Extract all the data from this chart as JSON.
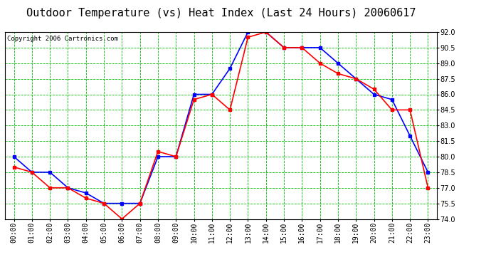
{
  "title": "Outdoor Temperature (vs) Heat Index (Last 24 Hours) 20060617",
  "copyright": "Copyright 2006 Cartronics.com",
  "hours": [
    "00:00",
    "01:00",
    "02:00",
    "03:00",
    "04:00",
    "05:00",
    "06:00",
    "07:00",
    "08:00",
    "09:00",
    "10:00",
    "11:00",
    "12:00",
    "13:00",
    "14:00",
    "15:00",
    "16:00",
    "17:00",
    "18:00",
    "19:00",
    "20:00",
    "21:00",
    "22:00",
    "23:00"
  ],
  "temp": [
    80.0,
    78.5,
    78.5,
    77.0,
    76.5,
    75.5,
    75.5,
    75.5,
    80.0,
    80.0,
    86.0,
    86.0,
    88.5,
    92.0,
    92.0,
    90.5,
    90.5,
    90.5,
    89.0,
    87.5,
    86.0,
    85.5,
    82.0,
    78.5
  ],
  "heat_index": [
    79.0,
    78.5,
    77.0,
    77.0,
    76.0,
    75.5,
    74.0,
    75.5,
    80.5,
    80.0,
    85.5,
    86.0,
    84.5,
    91.5,
    92.0,
    90.5,
    90.5,
    89.0,
    88.0,
    87.5,
    86.5,
    84.5,
    84.5,
    77.0
  ],
  "temp_color": "#0000ff",
  "heat_index_color": "#ff0000",
  "bg_color": "#ffffff",
  "plot_bg_color": "#ffffff",
  "grid_color": "#00bb00",
  "border_color": "#000000",
  "ylim": [
    74.0,
    92.0
  ],
  "yticks": [
    74.0,
    75.5,
    77.0,
    78.5,
    80.0,
    81.5,
    83.0,
    84.5,
    86.0,
    87.5,
    89.0,
    90.5,
    92.0
  ],
  "title_fontsize": 11,
  "tick_fontsize": 7,
  "copyright_fontsize": 6.5
}
